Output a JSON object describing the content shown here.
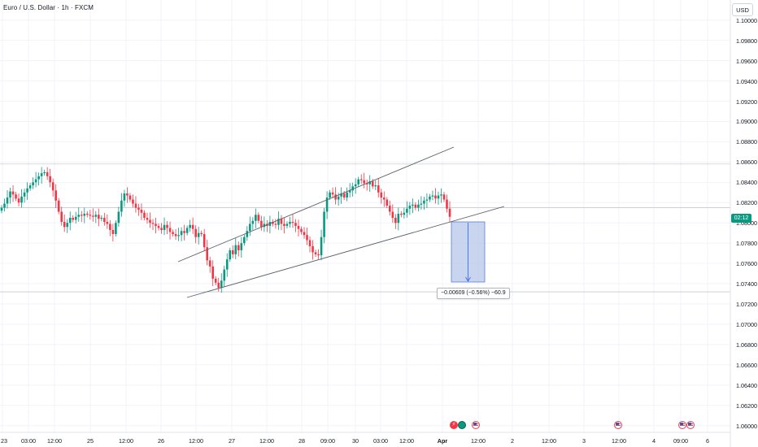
{
  "header": {
    "symbol_title": "Euro / U.S. Dollar · 1h · FXCM",
    "currency_label": "USD"
  },
  "price_axis": {
    "labels": [
      "1.10000",
      "1.09800",
      "1.09600",
      "1.09400",
      "1.09200",
      "1.09000",
      "1.08800",
      "1.08600",
      "1.08400",
      "1.08200",
      "1.08000",
      "1.07800",
      "1.07600",
      "1.07400",
      "1.07200",
      "1.07000",
      "1.06800",
      "1.06600",
      "1.06400",
      "1.06200",
      "1.06000"
    ]
  },
  "time_axis": {
    "labels": [
      "23",
      "03:00",
      "12:00",
      "25",
      "12:00",
      "26",
      "12:00",
      "27",
      "12:00",
      "28",
      "09:00",
      "30",
      "03:00",
      "12:00",
      "Apr",
      "12:00",
      "2",
      "12:00",
      "3",
      "12:00",
      "4",
      "09:00",
      "6"
    ]
  },
  "current_price_tag": "02:12",
  "measure_tool": {
    "label": "−0.00609 (−0.56%) −60.9"
  },
  "events": {
    "icons": [
      "bolt-icon",
      "clock-icon",
      "us-flag-icon",
      "us-flag-icon",
      "us-flag-icon",
      "us-flag-icon"
    ]
  },
  "colors": {
    "up": "#089981",
    "down": "#f23645",
    "measure_fill": "#b7c6ea",
    "measure_line": "#2962ff",
    "trendline": "#5d606b",
    "gridline": "#f0f3fa"
  },
  "chart_data": {
    "type": "candlestick",
    "ylim": [
      1.0595,
      1.1015
    ],
    "horizontal_levels": [
      1.0858,
      1.0815,
      1.0732
    ],
    "closes": [
      1.0815,
      1.0819,
      1.0825,
      1.0831,
      1.0828,
      1.0824,
      1.082,
      1.0826,
      1.083,
      1.0834,
      1.0837,
      1.084,
      1.0843,
      1.0846,
      1.0849,
      1.085,
      1.0846,
      1.084,
      1.0832,
      1.0822,
      1.0811,
      1.0801,
      1.0796,
      1.08,
      1.0805,
      1.0803,
      1.0806,
      1.0808,
      1.0807,
      1.0809,
      1.0808,
      1.0807,
      1.0806,
      1.0808,
      1.0804,
      1.0805,
      1.0801,
      1.0799,
      1.0793,
      1.0789,
      1.08,
      1.0811,
      1.0822,
      1.0829,
      1.0827,
      1.0823,
      1.0819,
      1.0815,
      1.0813,
      1.081,
      1.0805,
      1.0803,
      1.08,
      1.0799,
      1.0797,
      1.0795,
      1.0793,
      1.0798,
      1.0795,
      1.0791,
      1.0789,
      1.0787,
      1.0788,
      1.0792,
      1.079,
      1.0795,
      1.0798,
      1.0794,
      1.0786,
      1.079,
      1.0789,
      1.0776,
      1.0763,
      1.0757,
      1.0745,
      1.0741,
      1.0736,
      1.0743,
      1.0754,
      1.0764,
      1.0773,
      1.0769,
      1.0778,
      1.0773,
      1.078,
      1.0786,
      1.0792,
      1.0799,
      1.0802,
      1.0808,
      1.0802,
      1.0796,
      1.0799,
      1.0797,
      1.0801,
      1.0799,
      1.0798,
      1.0804,
      1.0799,
      1.0797,
      1.0799,
      1.0801,
      1.08,
      1.0797,
      1.0794,
      1.0791,
      1.0788,
      1.0783,
      1.0777,
      1.0771,
      1.0769,
      1.0768,
      1.0786,
      1.0811,
      1.0825,
      1.083,
      1.0828,
      1.0823,
      1.0826,
      1.0829,
      1.0825,
      1.083,
      1.0832,
      1.0836,
      1.0838,
      1.0843,
      1.0842,
      1.0839,
      1.0838,
      1.0841,
      1.0836,
      1.0837,
      1.083,
      1.0825,
      1.0823,
      1.0817,
      1.0811,
      1.0805,
      1.08,
      1.0809,
      1.0808,
      1.081,
      1.0814,
      1.0817,
      1.0818,
      1.0815,
      1.0818,
      1.0819,
      1.0822,
      1.0823,
      1.0826,
      1.0827,
      1.0824,
      1.0827,
      1.0828,
      1.0823,
      1.0814,
      1.0806
    ]
  }
}
